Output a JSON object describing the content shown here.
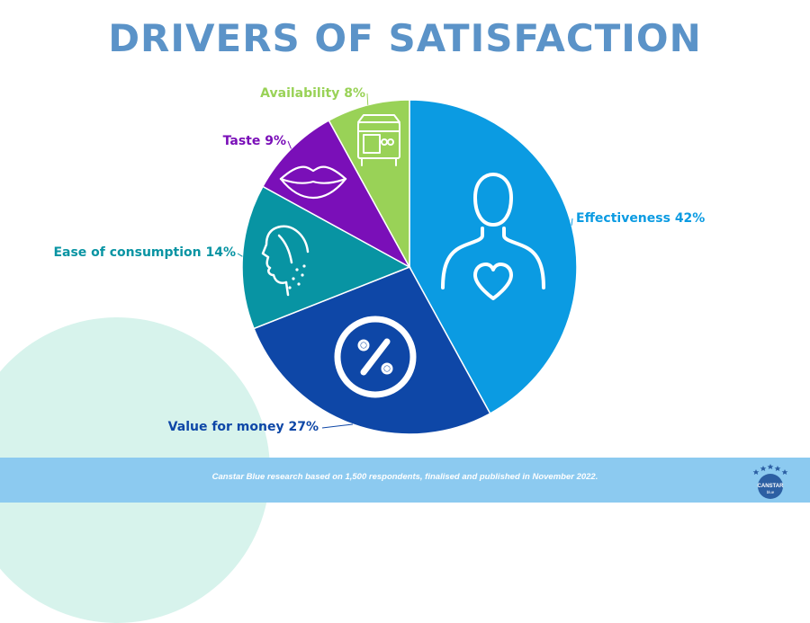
{
  "title": "DRIVERS OF SATISFACTION",
  "chart_data": {
    "type": "pie",
    "title": "DRIVERS OF SATISFACTION",
    "slices": [
      {
        "name": "Effectiveness",
        "value": 42,
        "label": "Effectiveness 42%",
        "color": "#0b9be2",
        "icon": "person-heart-icon"
      },
      {
        "name": "Value for money",
        "value": 27,
        "label": "Value for money 27%",
        "color": "#0e47a7",
        "icon": "percent-icon"
      },
      {
        "name": "Ease of consumption",
        "value": 14,
        "label": "Ease of consumption 14%",
        "color": "#0894a3",
        "icon": "face-swallow-icon"
      },
      {
        "name": "Taste",
        "value": 9,
        "label": "Taste 9%",
        "color": "#7a0fb8",
        "icon": "lips-icon"
      },
      {
        "name": "Availability",
        "value": 8,
        "label": "Availability 8%",
        "color": "#99d257",
        "icon": "store-icon"
      }
    ]
  },
  "footer": {
    "text": "Canstar Blue research based on 1,500 respondents, finalised and published in November 2022.",
    "logo_text": "CANSTAR",
    "logo_subtext": "blue"
  },
  "colors": {
    "title": "#5b93c8",
    "footer_bg": "#8ccaf0",
    "bg_circle": "#d7f3ec"
  }
}
